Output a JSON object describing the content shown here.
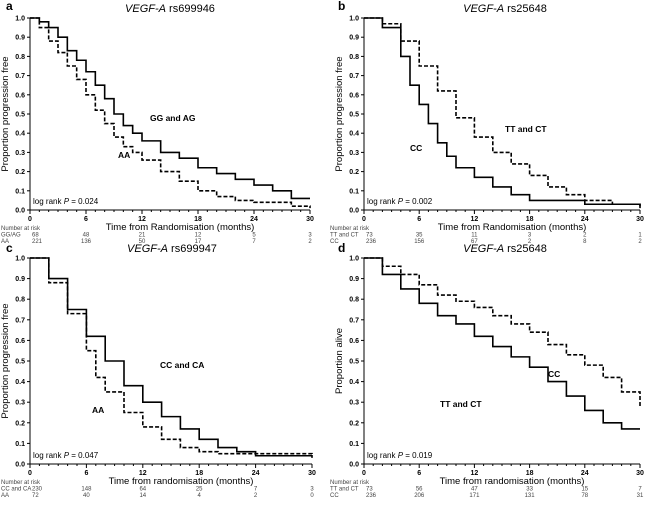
{
  "chart_data": [
    {
      "panel": "a",
      "type": "line",
      "title_gene": "VEGF-A",
      "title_snp": "rs699946",
      "ylabel": "Proportion progression free",
      "xlabel": "Time from Randomisation (months)",
      "xlim": [
        0,
        30
      ],
      "ylim": [
        0,
        1
      ],
      "xticks": [
        0,
        6,
        12,
        18,
        24,
        30
      ],
      "yticks": [
        "0.0",
        "0.1",
        "0.2",
        "0.3",
        "0.4",
        "0.5",
        "0.6",
        "0.7",
        "0.8",
        "0.9",
        "1.0"
      ],
      "pvalue_label": "log rank ",
      "pvalue_p": "P",
      "pvalue_value": " = 0.024",
      "risk_header": "Number at risk",
      "series": [
        {
          "name": "GG and AG",
          "risk_label": "GG/AG",
          "style": "solid",
          "risk": [
            "68",
            "48",
            "21",
            "12",
            "5",
            "3"
          ],
          "t": [
            0,
            1,
            2,
            3,
            4,
            5,
            6,
            7,
            8,
            9,
            10,
            11,
            12,
            14,
            16,
            18,
            20,
            22,
            24,
            26,
            28,
            30
          ],
          "s": [
            1,
            0.98,
            0.95,
            0.9,
            0.83,
            0.78,
            0.72,
            0.65,
            0.58,
            0.5,
            0.44,
            0.4,
            0.36,
            0.3,
            0.27,
            0.22,
            0.19,
            0.16,
            0.13,
            0.1,
            0.06,
            0.06
          ]
        },
        {
          "name": "AA",
          "risk_label": "AA",
          "style": "dashed",
          "risk": [
            "221",
            "136",
            "50",
            "17",
            "7",
            "2"
          ],
          "t": [
            0,
            1,
            2,
            3,
            4,
            5,
            6,
            7,
            8,
            9,
            10,
            11,
            12,
            14,
            16,
            18,
            20,
            22,
            24,
            28,
            30
          ],
          "s": [
            1,
            0.95,
            0.88,
            0.82,
            0.75,
            0.68,
            0.6,
            0.52,
            0.45,
            0.38,
            0.33,
            0.3,
            0.26,
            0.2,
            0.15,
            0.1,
            0.07,
            0.05,
            0.04,
            0.02,
            0.01
          ]
        }
      ]
    },
    {
      "panel": "b",
      "type": "line",
      "title_gene": "VEGF-A",
      "title_snp": "rs25648",
      "ylabel": "Proportion progression free",
      "xlabel": "Time from Randomisation (months)",
      "xlim": [
        0,
        30
      ],
      "ylim": [
        0,
        1
      ],
      "xticks": [
        0,
        6,
        12,
        18,
        24,
        30
      ],
      "yticks": [
        "0.0",
        "0.1",
        "0.2",
        "0.3",
        "0.4",
        "0.5",
        "0.6",
        "0.7",
        "0.8",
        "0.9",
        "1.0"
      ],
      "pvalue_label": "log rank ",
      "pvalue_p": "P",
      "pvalue_value": " = 0.002",
      "risk_header": "Number at risk",
      "series": [
        {
          "name": "TT and CT",
          "risk_label": "TT and CT",
          "style": "solid",
          "risk": [
            "73",
            "35",
            "11",
            "3",
            "2",
            "1"
          ],
          "t": [
            0,
            2,
            4,
            5,
            6,
            7,
            8,
            9,
            10,
            12,
            14,
            16,
            18,
            24,
            30
          ],
          "s": [
            1,
            0.95,
            0.8,
            0.65,
            0.55,
            0.45,
            0.35,
            0.28,
            0.22,
            0.17,
            0.12,
            0.08,
            0.05,
            0.03,
            0.01
          ]
        },
        {
          "name": "CC",
          "risk_label": "CC",
          "style": "dashed",
          "risk": [
            "236",
            "156",
            "67",
            "2",
            "8",
            "2"
          ],
          "t": [
            0,
            2,
            4,
            6,
            8,
            10,
            12,
            14,
            16,
            18,
            20,
            22,
            24,
            27,
            30
          ],
          "s": [
            1,
            0.97,
            0.88,
            0.75,
            0.62,
            0.48,
            0.38,
            0.3,
            0.24,
            0.18,
            0.12,
            0.08,
            0.05,
            0.03,
            0.02
          ]
        }
      ]
    },
    {
      "panel": "c",
      "type": "line",
      "title_gene": "VEGF-A",
      "title_snp": "rs699947",
      "ylabel": "Proportion progression free",
      "xlabel": "Time from randomisation (months)",
      "xlim": [
        0,
        30
      ],
      "ylim": [
        0,
        1
      ],
      "xticks": [
        0,
        6,
        12,
        18,
        24,
        30
      ],
      "yticks": [
        "0.0",
        "0.1",
        "0.2",
        "0.3",
        "0.4",
        "0.5",
        "0.6",
        "0.7",
        "0.8",
        "0.9",
        "1.0"
      ],
      "pvalue_label": "log rank ",
      "pvalue_p": "P",
      "pvalue_value": " = 0.047",
      "risk_header": "Number at risk",
      "series": [
        {
          "name": "CC and CA",
          "risk_label": "CC and CA",
          "style": "solid",
          "risk": [
            "230",
            "148",
            "64",
            "25",
            "7",
            "3"
          ],
          "t": [
            0,
            2,
            4,
            6,
            8,
            10,
            12,
            14,
            16,
            18,
            20,
            22,
            24,
            30
          ],
          "s": [
            1,
            0.9,
            0.75,
            0.62,
            0.5,
            0.38,
            0.3,
            0.23,
            0.17,
            0.12,
            0.08,
            0.06,
            0.04,
            0.03
          ]
        },
        {
          "name": "AA",
          "risk_label": "AA",
          "style": "dashed",
          "risk": [
            "72",
            "40",
            "14",
            "4",
            "2",
            "0"
          ],
          "t": [
            0,
            2,
            4,
            6,
            7,
            8,
            10,
            12,
            14,
            16,
            18,
            20,
            30
          ],
          "s": [
            1,
            0.88,
            0.73,
            0.55,
            0.42,
            0.35,
            0.25,
            0.18,
            0.12,
            0.08,
            0.06,
            0.05,
            0.04
          ]
        }
      ]
    },
    {
      "panel": "d",
      "type": "line",
      "title_gene": "VEGF-A",
      "title_snp": "rs25648",
      "ylabel": "Proportion alive",
      "xlabel": "Time from randomisation (months)",
      "xlim": [
        0,
        30
      ],
      "ylim": [
        0,
        1
      ],
      "xticks": [
        0,
        6,
        12,
        18,
        24,
        30
      ],
      "yticks": [
        "0.0",
        "0.1",
        "0.2",
        "0.3",
        "0.4",
        "0.5",
        "0.6",
        "0.7",
        "0.8",
        "0.9",
        "1.0"
      ],
      "pvalue_label": "log rank ",
      "pvalue_p": "P",
      "pvalue_value": " = 0.019",
      "risk_header": "Number at risk",
      "series": [
        {
          "name": "TT and CT",
          "risk_label": "TT and CT",
          "style": "solid",
          "risk": [
            "73",
            "56",
            "47",
            "33",
            "15",
            "7"
          ],
          "t": [
            0,
            2,
            4,
            6,
            8,
            10,
            12,
            14,
            16,
            18,
            20,
            22,
            24,
            26,
            28,
            30
          ],
          "s": [
            1,
            0.92,
            0.85,
            0.78,
            0.72,
            0.68,
            0.62,
            0.57,
            0.52,
            0.47,
            0.4,
            0.33,
            0.26,
            0.2,
            0.17,
            0.17
          ]
        },
        {
          "name": "CC",
          "risk_label": "CC",
          "style": "dashed",
          "risk": [
            "236",
            "206",
            "171",
            "131",
            "78",
            "31"
          ],
          "t": [
            0,
            2,
            4,
            6,
            8,
            10,
            12,
            14,
            16,
            18,
            20,
            22,
            24,
            26,
            28,
            30
          ],
          "s": [
            1,
            0.96,
            0.92,
            0.87,
            0.82,
            0.79,
            0.76,
            0.72,
            0.68,
            0.64,
            0.58,
            0.53,
            0.48,
            0.42,
            0.35,
            0.28
          ]
        }
      ]
    }
  ]
}
